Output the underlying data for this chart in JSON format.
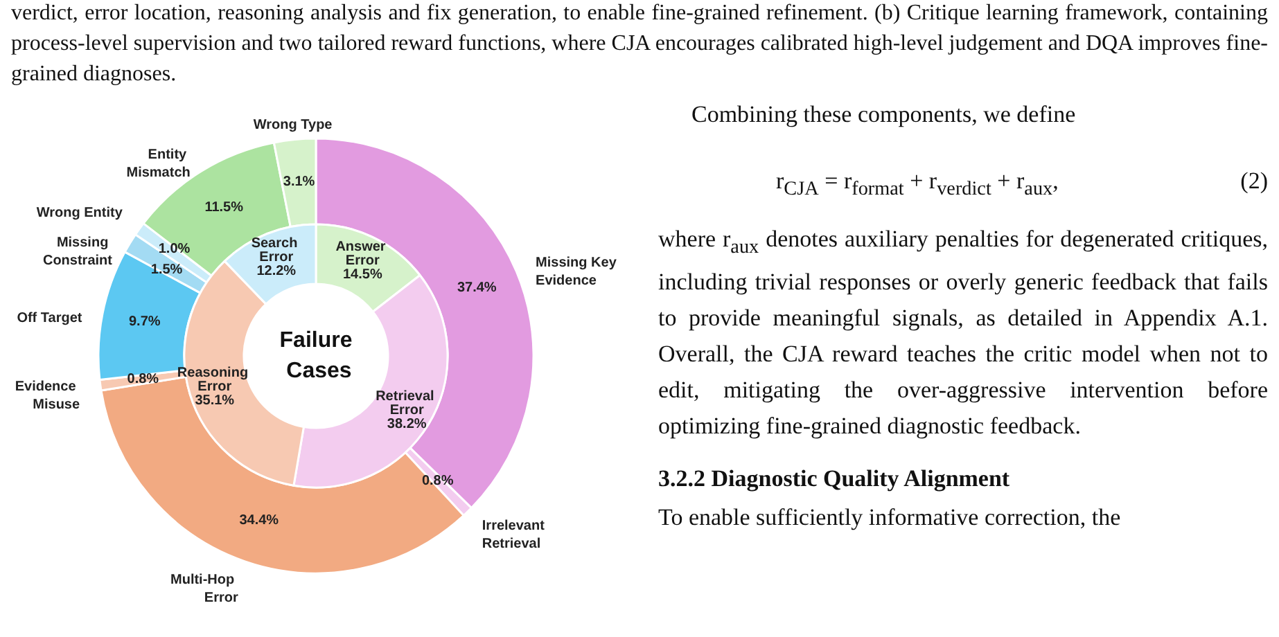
{
  "chart_data": [
    {
      "type": "donut",
      "title": "Failure Cases",
      "categories": [
        "Answer Error",
        "Retrieval Error",
        "Reasoning Error",
        "Search Error"
      ],
      "values": [
        14.5,
        38.2,
        35.1,
        12.2
      ],
      "value_labels": [
        "14.5%",
        "38.2%",
        "35.1%",
        "12.2%"
      ],
      "colors": [
        "#d6f2cb",
        "#f3ccef",
        "#f7c9b2",
        "#cbecfa"
      ],
      "annotations": [
        "verdict, error location, reasoning analysis and fix generation, to enable fine-grained refinement. (b) Critique learning framework, containing process-level supervision and two tailored reward functions, where CJA encourages calibrated high-level judgement and DQA improves fine-grained diagnoses.",
        "Combining these components, we define",
        "r$_{CJA}$ = r$_{format}$ + r$_{verdict}$ + r$_{aux}$,",
        "(2)",
        "where r$_{aux}$ denotes auxiliary penalties for degenerated critiques, including trivial responses or overly generic feedback that fails to provide meaningful signals, as detailed in Appendix A.1. Overall, the CJA reward teaches the critic model when not to edit, mitigating the over-aggressive intervention before optimizing fine-grained diagnostic feedback.",
        "3.2.2  Diagnostic Quality Alignment",
        "To enable sufficiently informative correction, the"
      ]
    },
    {
      "type": "donut",
      "categories": [
        "Missing Key Evidence",
        "Irrelevant Retrieval",
        "Multi-Hop Error",
        "Evidence Misuse",
        "Off Target",
        "Missing Constraint",
        "Wrong Entity",
        "Entity Mismatch",
        "Wrong Type"
      ],
      "values": [
        37.4,
        0.8,
        34.4,
        0.8,
        9.7,
        1.5,
        1.0,
        11.5,
        3.1
      ],
      "value_labels": [
        "37.4%",
        "0.8%",
        "34.4%",
        "0.8%",
        "9.7%",
        "1.5%",
        "1.0%",
        "11.5%",
        "3.1%"
      ],
      "colors": [
        "#e29be0",
        "#f3ccef",
        "#f2aa82",
        "#f7c9b2",
        "#5cc8f2",
        "#a3dbf3",
        "#cbecfa",
        "#ace3a0",
        "#d6f2cb"
      ]
    }
  ]
}
